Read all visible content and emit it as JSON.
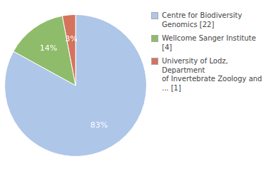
{
  "chart_data": {
    "type": "pie",
    "categories": [
      "Centre for Biodiversity\nGenomics [22]",
      "Wellcome Sanger Institute [4]",
      "University of Lodz, Department\nof Invertebrate Zoology and\n... [1]"
    ],
    "values": [
      83,
      14,
      3
    ],
    "value_labels": [
      "83%",
      "14%",
      "3%"
    ],
    "colors": [
      "#aec6e8",
      "#8fbc6a",
      "#d4735e"
    ],
    "data_labels": true,
    "legend": "right"
  }
}
